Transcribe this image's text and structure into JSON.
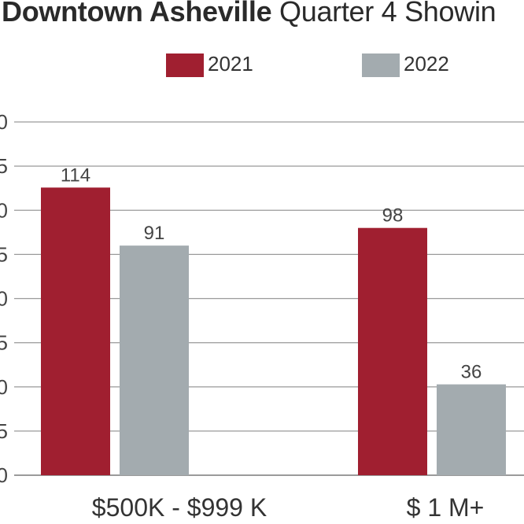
{
  "chart_data": {
    "type": "bar",
    "title_bold": "Downtown Asheville",
    "title_rest": "Quarter 4 Showin",
    "categories": [
      "$500K - $999 K",
      "$ 1 M+"
    ],
    "series": [
      {
        "name": "2021",
        "values": [
          114,
          98
        ],
        "color": "#a01f30"
      },
      {
        "name": "2022",
        "values": [
          91,
          36
        ],
        "color": "#a3abaf"
      }
    ],
    "ylim": [
      0,
      140
    ],
    "ytick_labels": [
      "0",
      "5",
      "0",
      "5",
      "0",
      "5",
      "0",
      "5",
      "0"
    ],
    "grid": true,
    "legend_position": "top-center"
  }
}
